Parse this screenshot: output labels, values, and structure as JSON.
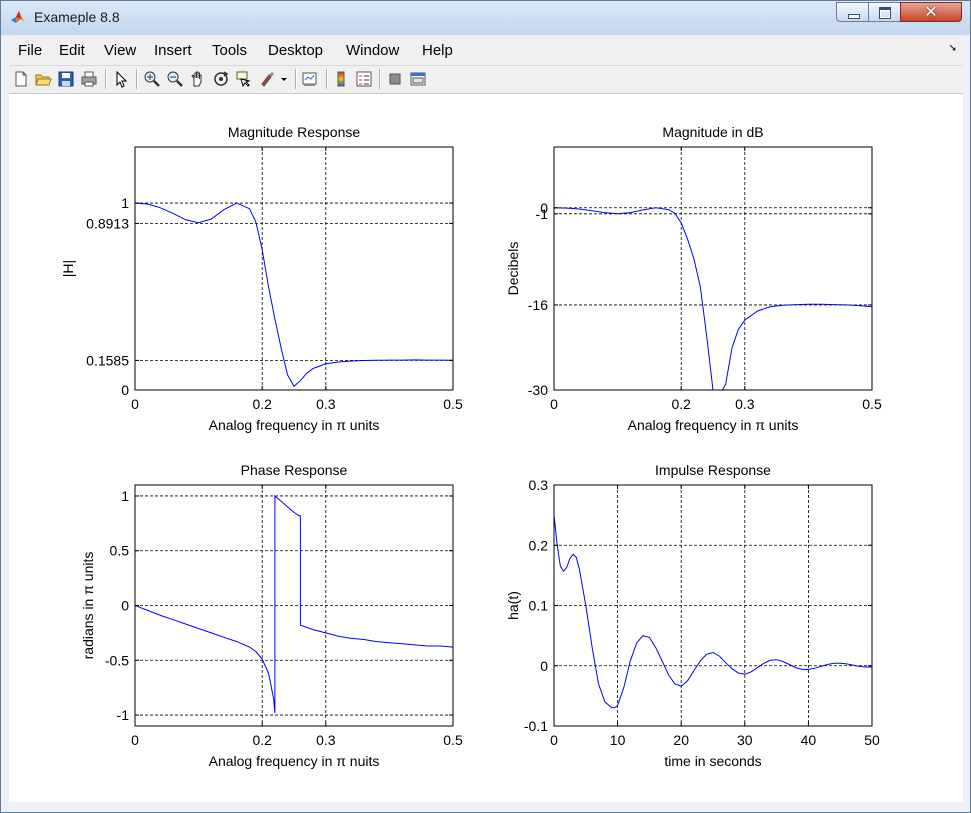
{
  "window": {
    "title": "Exameple 8.8",
    "close_glyph": "✕"
  },
  "menu": [
    "File",
    "Edit",
    "View",
    "Insert",
    "Tools",
    "Desktop",
    "Window",
    "Help"
  ],
  "toolbar": [
    "new-icon",
    "open-icon",
    "save-icon",
    "print-icon",
    "pointer-icon",
    "zoom-in-icon",
    "zoom-out-icon",
    "pan-icon",
    "rotate-icon",
    "data-cursor-icon",
    "brush-icon",
    "link-icon",
    "colorbar-icon",
    "legend-icon",
    "hide-tools-icon",
    "show-tools-icon"
  ],
  "chart_data": [
    {
      "type": "line",
      "title": "Magnitude Response",
      "xlabel": "Analog frequency in π units",
      "ylabel": "|H|",
      "xlim": [
        0,
        0.5
      ],
      "ylim": [
        0,
        1.3
      ],
      "xticks": [
        0,
        0.2,
        0.3,
        0.5
      ],
      "xtick_labels": [
        "0",
        "0.2",
        "0.3",
        "0.5"
      ],
      "yticks": [
        0,
        0.1585,
        0.8913,
        1
      ],
      "ytick_labels": [
        "0",
        "0.1585",
        "0.8913",
        "1"
      ],
      "grid": true,
      "color": "#0000ff",
      "x": [
        0,
        0.02,
        0.04,
        0.06,
        0.08,
        0.1,
        0.12,
        0.14,
        0.16,
        0.18,
        0.19,
        0.2,
        0.21,
        0.22,
        0.23,
        0.24,
        0.25,
        0.26,
        0.27,
        0.28,
        0.3,
        0.32,
        0.34,
        0.36,
        0.38,
        0.4,
        0.42,
        0.44,
        0.46,
        0.48,
        0.5
      ],
      "y": [
        1.0,
        0.995,
        0.975,
        0.945,
        0.91,
        0.895,
        0.915,
        0.965,
        1.0,
        0.97,
        0.9,
        0.75,
        0.55,
        0.38,
        0.22,
        0.08,
        0.02,
        0.05,
        0.09,
        0.115,
        0.14,
        0.15,
        0.155,
        0.158,
        0.159,
        0.16,
        0.16,
        0.161,
        0.16,
        0.16,
        0.159
      ]
    },
    {
      "type": "line",
      "title": "Magnitude in dB",
      "xlabel": "Analog frequency in π units",
      "ylabel": "Decibels",
      "xlim": [
        0,
        0.5
      ],
      "ylim": [
        -30,
        10
      ],
      "xticks": [
        0,
        0.2,
        0.3,
        0.5
      ],
      "xtick_labels": [
        "0",
        "0.2",
        "0.3",
        "0.5"
      ],
      "yticks": [
        -30,
        -16,
        -1,
        0
      ],
      "ytick_labels": [
        "-30",
        "-16",
        "-1",
        "0"
      ],
      "grid": true,
      "color": "#0000ff",
      "x": [
        0,
        0.02,
        0.04,
        0.06,
        0.08,
        0.1,
        0.12,
        0.14,
        0.16,
        0.18,
        0.19,
        0.2,
        0.21,
        0.22,
        0.23,
        0.24,
        0.25,
        0.255,
        0.26,
        0.265,
        0.27,
        0.28,
        0.29,
        0.3,
        0.32,
        0.34,
        0.36,
        0.38,
        0.4,
        0.42,
        0.44,
        0.46,
        0.48,
        0.5
      ],
      "y": [
        0,
        -0.05,
        -0.2,
        -0.5,
        -0.8,
        -1.0,
        -0.8,
        -0.35,
        0,
        -0.3,
        -0.9,
        -2.5,
        -5.2,
        -8.4,
        -13,
        -21,
        -30,
        -30,
        -30,
        -30,
        -29,
        -23,
        -20,
        -18.5,
        -17,
        -16.3,
        -16.05,
        -15.95,
        -15.9,
        -15.9,
        -15.95,
        -16,
        -16.1,
        -16.3
      ]
    },
    {
      "type": "line",
      "title": "Phase Response",
      "xlabel": "Analog frequency in π nuits",
      "ylabel": "radians in π units",
      "xlim": [
        0,
        0.5
      ],
      "ylim": [
        -1.1,
        1.1
      ],
      "xticks": [
        0,
        0.2,
        0.3,
        0.5
      ],
      "xtick_labels": [
        "0",
        "0.2",
        "0.3",
        "0.5"
      ],
      "yticks": [
        -1,
        -0.5,
        0,
        0.5,
        1
      ],
      "ytick_labels": [
        "-1",
        "-0.5",
        "0",
        "0.5",
        "1"
      ],
      "grid": true,
      "color": "#0000ff",
      "x": [
        0,
        0.02,
        0.04,
        0.06,
        0.08,
        0.1,
        0.12,
        0.14,
        0.16,
        0.18,
        0.19,
        0.2,
        0.21,
        0.218,
        0.22,
        0.22,
        0.23,
        0.24,
        0.25,
        0.258,
        0.26,
        0.26,
        0.27,
        0.28,
        0.3,
        0.32,
        0.34,
        0.36,
        0.38,
        0.4,
        0.42,
        0.44,
        0.46,
        0.48,
        0.5
      ],
      "y": [
        0,
        -0.045,
        -0.09,
        -0.13,
        -0.17,
        -0.21,
        -0.25,
        -0.29,
        -0.33,
        -0.38,
        -0.42,
        -0.49,
        -0.62,
        -0.85,
        -0.98,
        1.0,
        0.95,
        0.9,
        0.85,
        0.82,
        0.82,
        -0.18,
        -0.2,
        -0.22,
        -0.25,
        -0.28,
        -0.3,
        -0.31,
        -0.33,
        -0.34,
        -0.35,
        -0.36,
        -0.37,
        -0.37,
        -0.38
      ]
    },
    {
      "type": "line",
      "title": "Impulse Response",
      "xlabel": "time in seconds",
      "ylabel": "ha(t)",
      "xlim": [
        0,
        50
      ],
      "ylim": [
        -0.1,
        0.3
      ],
      "xticks": [
        0,
        10,
        20,
        30,
        40,
        50
      ],
      "xtick_labels": [
        "0",
        "10",
        "20",
        "30",
        "40",
        "50"
      ],
      "yticks": [
        -0.1,
        0,
        0.1,
        0.2,
        0.3
      ],
      "ytick_labels": [
        "-0.1",
        "0",
        "0.1",
        "0.2",
        "0.3"
      ],
      "grid": true,
      "color": "#0000ff",
      "x": [
        0,
        0.5,
        1,
        1.5,
        2,
        2.5,
        3,
        3.5,
        4,
        4.5,
        5,
        6,
        7,
        8,
        9,
        9.5,
        10,
        11,
        12,
        13,
        14,
        15,
        16,
        17,
        18,
        19,
        20,
        21,
        22,
        23,
        24,
        25,
        26,
        27,
        28,
        29,
        30,
        31,
        32,
        33,
        34,
        35,
        36,
        37,
        38,
        39,
        40,
        41,
        42,
        43,
        44,
        45,
        46,
        47,
        48,
        49,
        50
      ],
      "y": [
        0.25,
        0.2,
        0.165,
        0.157,
        0.163,
        0.178,
        0.185,
        0.18,
        0.16,
        0.13,
        0.1,
        0.03,
        -0.03,
        -0.06,
        -0.069,
        -0.07,
        -0.066,
        -0.035,
        0.008,
        0.038,
        0.05,
        0.047,
        0.03,
        0.008,
        -0.015,
        -0.03,
        -0.034,
        -0.025,
        -0.008,
        0.008,
        0.019,
        0.022,
        0.016,
        0.005,
        -0.005,
        -0.012,
        -0.014,
        -0.01,
        -0.003,
        0.004,
        0.009,
        0.01,
        0.007,
        0.002,
        -0.003,
        -0.006,
        -0.006,
        -0.004,
        -0.001,
        0.002,
        0.004,
        0.004,
        0.003,
        0.001,
        -0.001,
        -0.002,
        -0.002
      ]
    }
  ]
}
